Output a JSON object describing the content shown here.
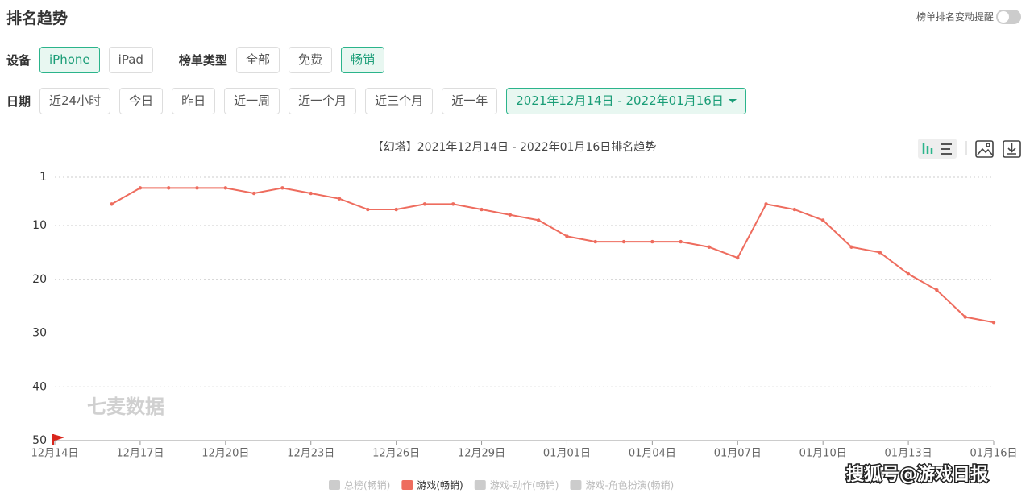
{
  "header": {
    "title": "排名趋势",
    "toggle_label": "榜单排名变动提醒"
  },
  "filters": {
    "device": {
      "label": "设备",
      "options": [
        "iPhone",
        "iPad"
      ],
      "selected": 0
    },
    "list_type": {
      "label": "榜单类型",
      "options": [
        "全部",
        "免费",
        "畅销"
      ],
      "selected": 2
    },
    "date": {
      "label": "日期",
      "options": [
        "近24小时",
        "今日",
        "昨日",
        "近一周",
        "近一个月",
        "近三个月",
        "近一年"
      ],
      "range": "2021年12月14日 - 2022年01月16日"
    }
  },
  "watermark": "七麦数据",
  "source": "搜狐号@游戏日报",
  "chart_data": {
    "type": "line",
    "title": "【幻塔】2021年12月14日 - 2022年01月16日排名趋势",
    "categories": [
      "12月14日",
      null,
      null,
      "12月17日",
      null,
      null,
      "12月20日",
      null,
      null,
      "12月23日",
      null,
      null,
      "12月26日",
      null,
      null,
      "12月29日",
      null,
      null,
      "01月01日",
      null,
      null,
      "01月04日",
      null,
      null,
      "01月07日",
      null,
      null,
      "01月10日",
      null,
      null,
      "01月13日",
      null,
      null,
      "01月16日"
    ],
    "series": [
      {
        "name": "游戏(畅销)",
        "color": "#ee6c5e",
        "values": [
          null,
          null,
          6,
          3,
          3,
          3,
          3,
          4,
          3,
          4,
          5,
          7,
          7,
          6,
          6,
          7,
          8,
          9,
          12,
          13,
          13,
          13,
          13,
          14,
          16,
          6,
          7,
          9,
          14,
          15,
          19,
          22,
          27,
          28
        ]
      }
    ],
    "inactive_legend": [
      "总榜(畅销)",
      "游戏-动作(畅销)",
      "游戏-角色扮演(畅销)"
    ],
    "inactive_color": "#cccccc",
    "ylim": [
      50,
      1
    ],
    "yticks": [
      1,
      10,
      20,
      30,
      40,
      50
    ],
    "grid": true
  }
}
